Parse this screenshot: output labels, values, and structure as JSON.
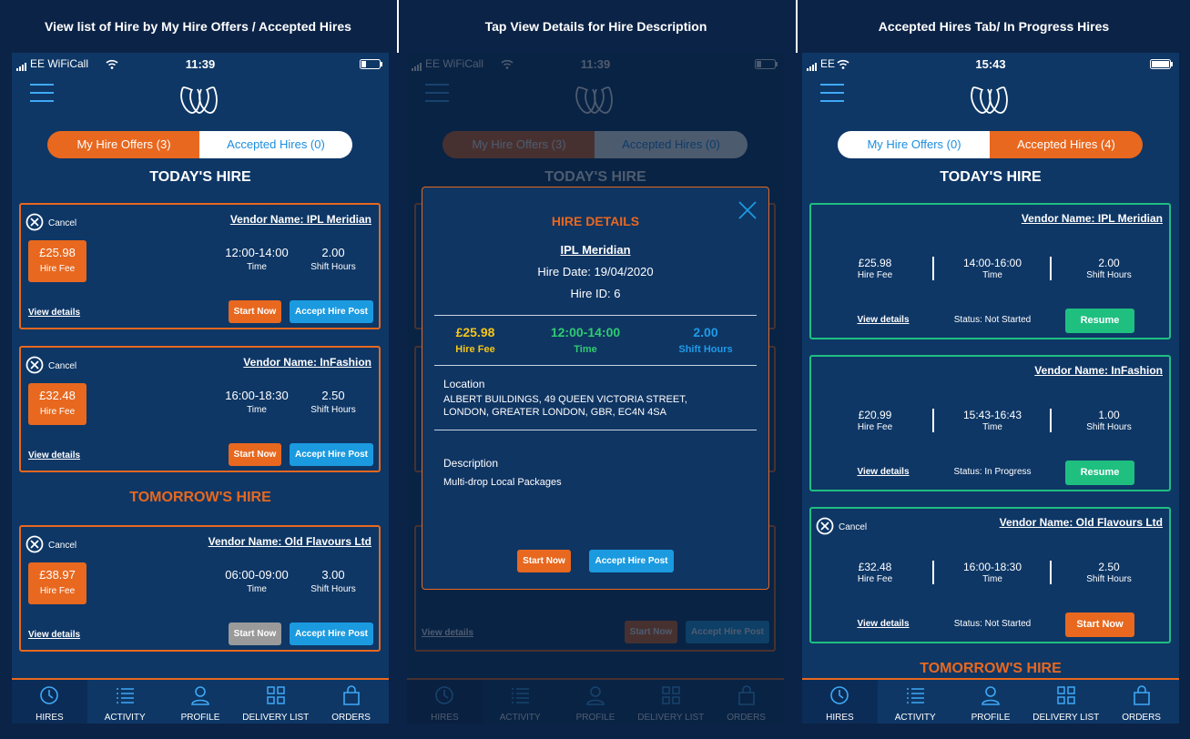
{
  "panels": [
    {
      "caption": "View list of Hire by My Hire Offers / Accepted Hires",
      "status": {
        "carrier": "EE WiFiCall",
        "time": "11:39"
      },
      "tabs": [
        "My Hire Offers (3)",
        "Accepted Hires (0)"
      ],
      "sections": [
        {
          "heading": "TODAY'S HIRE",
          "cards": [
            {
              "cancel": "Cancel",
              "vendor": "Vendor Name: IPL Meridian",
              "fee": "£25.98",
              "fee_label": "Hire Fee",
              "time": "12:00-14:00",
              "time_label": "Time",
              "hours": "2.00",
              "hours_label": "Shift Hours",
              "view": "View details",
              "start": "Start Now",
              "accept": "Accept Hire Post"
            },
            {
              "cancel": "Cancel",
              "vendor": "Vendor Name: InFashion",
              "fee": "£32.48",
              "fee_label": "Hire Fee",
              "time": "16:00-18:30",
              "time_label": "Time",
              "hours": "2.50",
              "hours_label": "Shift Hours",
              "view": "View details",
              "start": "Start Now",
              "accept": "Accept Hire Post"
            }
          ]
        },
        {
          "heading": "TOMORROW'S HIRE",
          "cards": [
            {
              "cancel": "Cancel",
              "vendor": "Vendor Name: Old Flavours Ltd",
              "fee": "£38.97",
              "fee_label": "Hire Fee",
              "time": "06:00-09:00",
              "time_label": "Time",
              "hours": "3.00",
              "hours_label": "Shift Hours",
              "view": "View details",
              "start": "Start Now",
              "accept": "Accept Hire Post"
            }
          ]
        }
      ],
      "nav": [
        "HIRES",
        "ACTIVITY",
        "PROFILE",
        "DELIVERY LIST",
        "ORDERS"
      ]
    },
    {
      "caption": "Tap View Details for Hire Description",
      "status": {
        "carrier": "EE WiFiCall",
        "time": "11:39"
      },
      "tabs": [
        "My Hire Offers (3)",
        "Accepted Hires (0)"
      ],
      "heading": "TODAY'S HIRE",
      "background_row": {
        "view": "View details",
        "start": "Start Now",
        "accept": "Accept Hire Post"
      },
      "modal": {
        "title": "HIRE DETAILS",
        "vendor": "IPL Meridian",
        "date": "Hire Date: 19/04/2020",
        "id": "Hire ID: 6",
        "fee": "£25.98",
        "fee_label": "Hire Fee",
        "time": "12:00-14:00",
        "time_label": "Time",
        "hours": "2.00",
        "hours_label": "Shift Hours",
        "location_label": "Location",
        "location": "ALBERT BUILDINGS, 49 QUEEN VICTORIA STREET, LONDON, GREATER LONDON, GBR, EC4N 4SA",
        "description_label": "Description",
        "description": "Multi-drop Local Packages",
        "start": "Start Now",
        "accept": "Accept Hire Post"
      },
      "nav": [
        "HIRES",
        "ACTIVITY",
        "PROFILE",
        "DELIVERY LIST",
        "ORDERS"
      ]
    },
    {
      "caption": "Accepted Hires Tab/ In Progress Hires",
      "status": {
        "carrier": "EE",
        "time": "15:43"
      },
      "tabs": [
        "My Hire Offers (0)",
        "Accepted Hires (4)"
      ],
      "sections": [
        {
          "heading": "TODAY'S HIRE",
          "cards": [
            {
              "vendor": "Vendor Name: IPL Meridian",
              "fee": "£25.98",
              "fee_label": "Hire Fee",
              "time": "14:00-16:00",
              "time_label": "Time",
              "hours": "2.00",
              "hours_label": "Shift Hours",
              "view": "View details",
              "status": "Status: Not Started",
              "button": "Resume"
            },
            {
              "vendor": "Vendor Name: InFashion",
              "fee": "£20.99",
              "fee_label": "Hire Fee",
              "time": "15:43-16:43",
              "time_label": "Time",
              "hours": "1.00",
              "hours_label": "Shift Hours",
              "view": "View details",
              "status": "Status: In Progress",
              "button": "Resume"
            },
            {
              "cancel": "Cancel",
              "vendor": "Vendor Name: Old Flavours Ltd",
              "fee": "£32.48",
              "fee_label": "Hire Fee",
              "time": "16:00-18:30",
              "time_label": "Time",
              "hours": "2.50",
              "hours_label": "Shift Hours",
              "view": "View details",
              "status": "Status: Not Started",
              "button": "Start Now"
            }
          ]
        },
        {
          "heading": "TOMORROW'S HIRE",
          "cards": []
        }
      ],
      "nav": [
        "HIRES",
        "ACTIVITY",
        "PROFILE",
        "DELIVERY LIST",
        "ORDERS"
      ]
    }
  ]
}
